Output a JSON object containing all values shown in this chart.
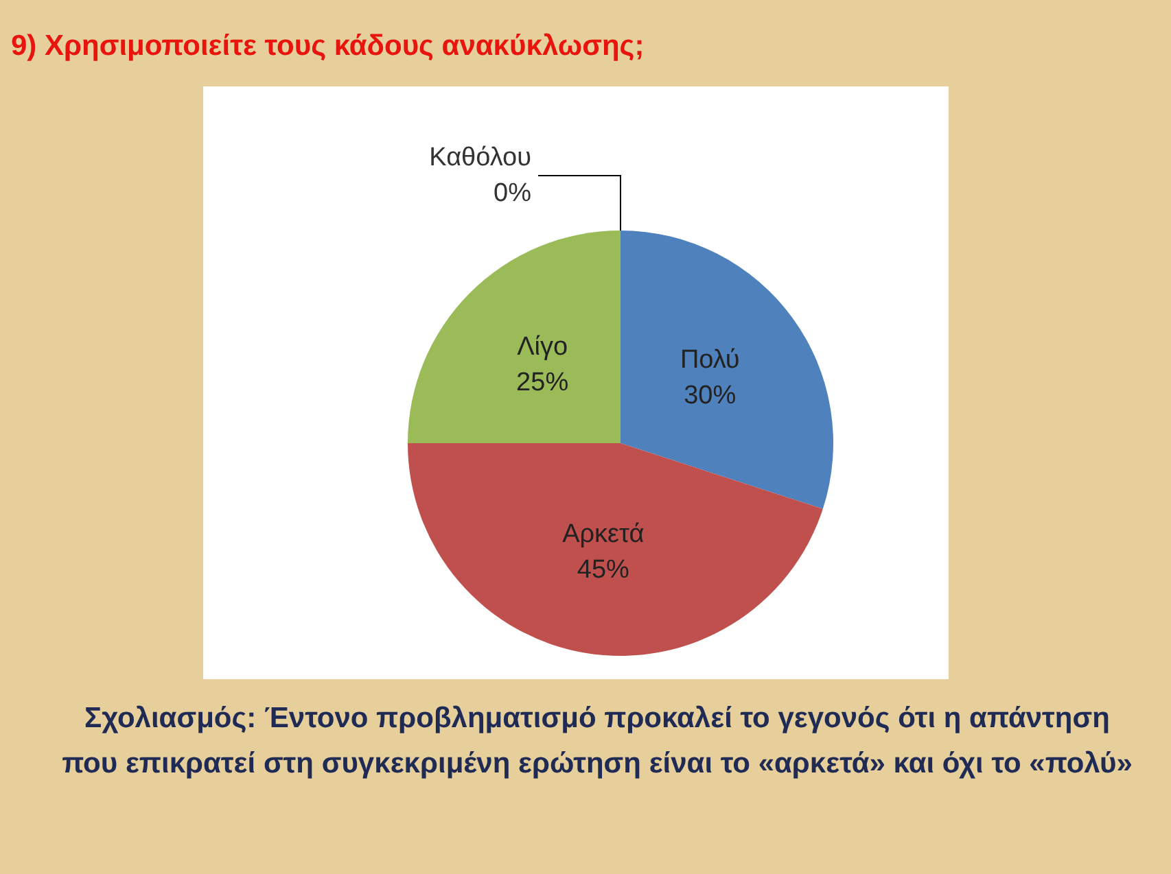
{
  "chart_data": {
    "type": "pie",
    "title": "9) Χρησιμοποιείτε τους κάδους ανακύκλωσης;",
    "categories": [
      "Πολύ",
      "Αρκετά",
      "Λίγο",
      "Καθόλου"
    ],
    "values": [
      30,
      45,
      25,
      0
    ],
    "value_labels": [
      "30%",
      "45%",
      "25%",
      "0%"
    ],
    "colors": [
      "#4f81bd",
      "#c0504d",
      "#9bbb59",
      "#8064a2"
    ],
    "annotations": [
      "Σχολιασμός: Έντονο προβληματισμό προκαλεί το γεγονός ότι η απάντηση που επικρατεί στη συγκεκριμένη ερώτηση είναι το «αρκετά» και όχι το «πολύ»"
    ]
  }
}
